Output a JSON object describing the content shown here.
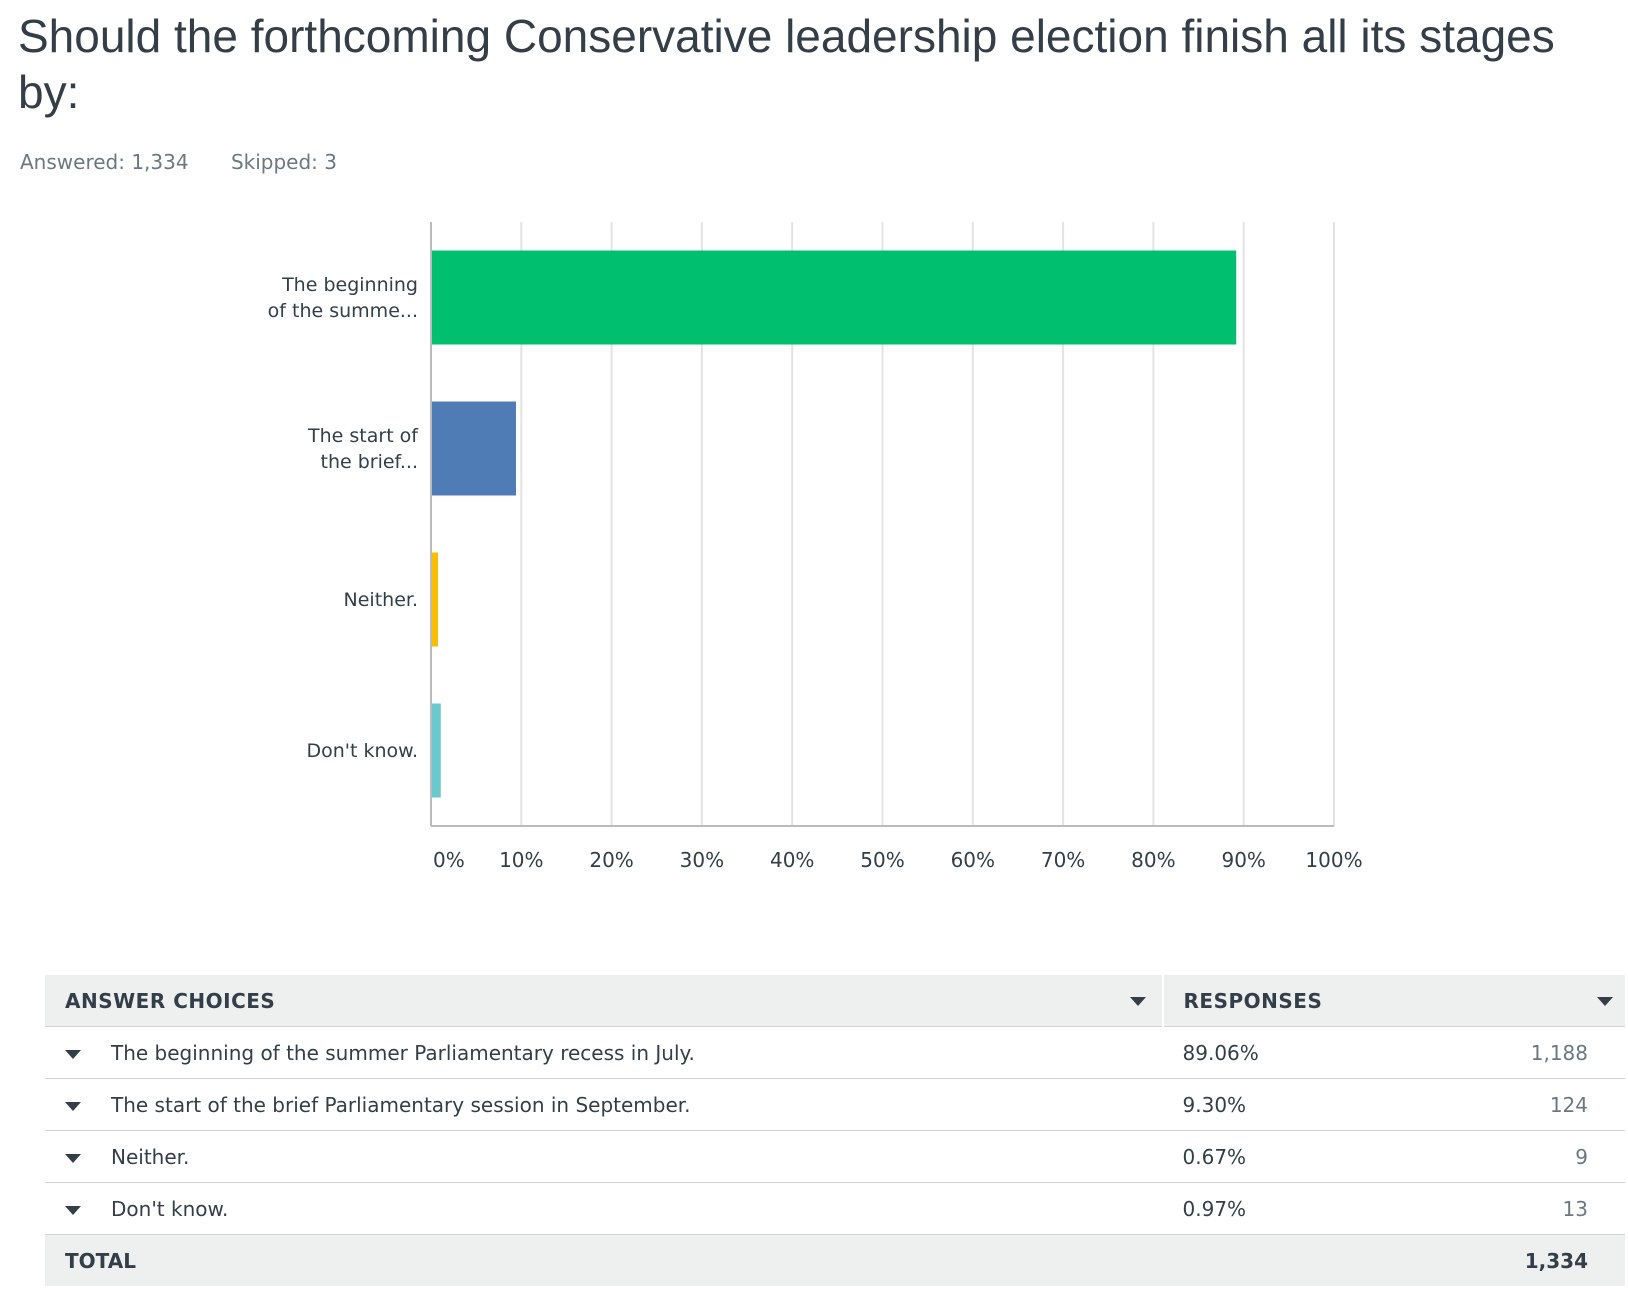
{
  "title": "Should the forthcoming Conservative leadership election finish all its stages by:",
  "answered": "Answered: 1,334",
  "skipped": "Skipped: 3",
  "chart_data": {
    "type": "hbar",
    "categories": [
      "The beginning\nof the summe...",
      "The start of\nthe brief...",
      "Neither.",
      "Don't know."
    ],
    "values": [
      89.06,
      9.3,
      0.67,
      0.97
    ],
    "colors": [
      "#00bf6f",
      "#507cb6",
      "#f9be00",
      "#6bc8cd"
    ],
    "xlim": [
      0,
      100
    ],
    "xticks": [
      {
        "value": 0,
        "label": "0%"
      },
      {
        "value": 10,
        "label": "10%"
      },
      {
        "value": 20,
        "label": "20%"
      },
      {
        "value": 30,
        "label": "30%"
      },
      {
        "value": 40,
        "label": "40%"
      },
      {
        "value": 50,
        "label": "50%"
      },
      {
        "value": 60,
        "label": "60%"
      },
      {
        "value": 70,
        "label": "70%"
      },
      {
        "value": 80,
        "label": "80%"
      },
      {
        "value": 90,
        "label": "90%"
      },
      {
        "value": 100,
        "label": "100%"
      }
    ],
    "grid": true
  },
  "table": {
    "header": [
      "ANSWER CHOICES",
      "RESPONSES"
    ],
    "rows": [
      [
        "The beginning of the summer Parliamentary recess in July.",
        "89.06%",
        "1,188"
      ],
      [
        "The start of the brief Parliamentary session in September.",
        "9.30%",
        "124"
      ],
      [
        "Neither.",
        "0.67%",
        "9"
      ],
      [
        "Don't know.",
        "0.97%",
        "13"
      ]
    ],
    "total": [
      "TOTAL",
      "1,334"
    ]
  }
}
